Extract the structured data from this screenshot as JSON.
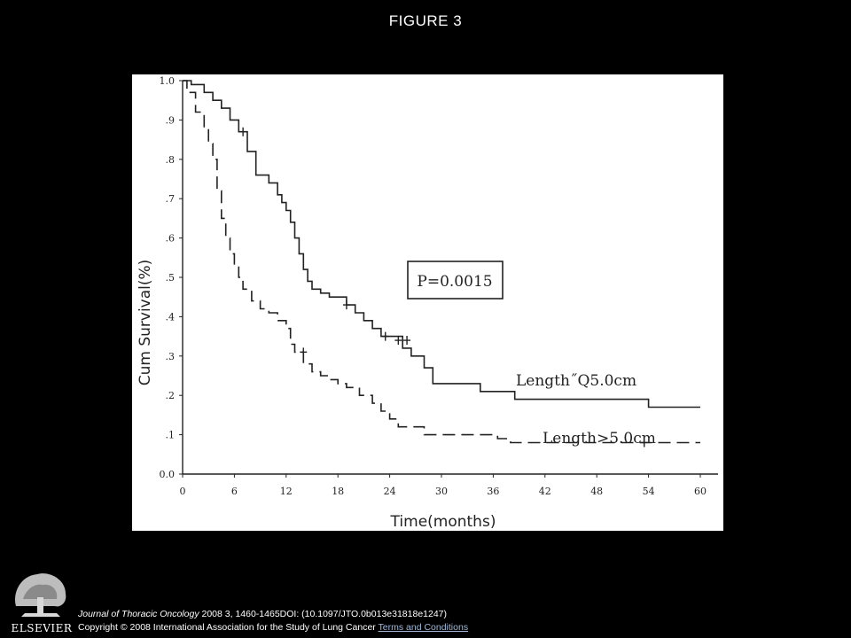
{
  "slide": {
    "title": "FIGURE 3"
  },
  "footer": {
    "journal": "Journal of Thoracic Oncology",
    "citation": " 2008 3, 1460-1465DOI: (10.1097/JTO.0b013e31818e1247)",
    "copyright": "Copyright © 2008 International Association for the Study of Lung Cancer",
    "terms_link": "Terms and Conditions"
  },
  "logo": {
    "text": "ELSEVIER"
  },
  "colors": {
    "background": "#000000",
    "panel": "#ffffff",
    "ink": "#222222",
    "link": "#9fb7d6"
  },
  "chart_data": {
    "type": "line",
    "title": "",
    "xlabel": "Time(months)",
    "ylabel": "Cum Survival(%)",
    "xlim": [
      0,
      60
    ],
    "ylim": [
      0,
      1
    ],
    "x_ticks": [
      0,
      6,
      12,
      18,
      24,
      30,
      36,
      42,
      48,
      54,
      60
    ],
    "x_tick_labels": [
      "0",
      "6",
      "12",
      "18",
      "24",
      "30",
      "36",
      "42",
      "48",
      "54",
      "60"
    ],
    "y_ticks": [
      0,
      0.1,
      0.2,
      0.3,
      0.4,
      0.5,
      0.6,
      0.7,
      0.8,
      0.9,
      1.0
    ],
    "y_tick_labels": [
      "0.0",
      ".1",
      ".2",
      ".3",
      ".4",
      ".5",
      ".6",
      ".7",
      ".8",
      ".9",
      "1.0"
    ],
    "grid": false,
    "annotation": "P=0.0015",
    "series": [
      {
        "name": "Length˝Q5.0cm",
        "style": "solid",
        "x": [
          0,
          1.0,
          1.0,
          2.5,
          2.5,
          3.5,
          3.5,
          4.5,
          4.5,
          5.5,
          5.5,
          6.5,
          6.5,
          7.5,
          7.5,
          8.5,
          8.5,
          10.0,
          10.0,
          11.0,
          11.0,
          11.5,
          11.5,
          12.0,
          12.0,
          12.5,
          12.5,
          13.0,
          13.0,
          13.5,
          13.5,
          14.0,
          14.0,
          14.5,
          14.5,
          15.0,
          15.0,
          16.0,
          16.0,
          17.0,
          17.0,
          19.0,
          19.0,
          20.0,
          20.0,
          21.0,
          21.0,
          22.0,
          22.0,
          23.0,
          23.0,
          25.5,
          25.5,
          26.5,
          26.5,
          28.0,
          28.0,
          29.0,
          29.0,
          34.5,
          34.5,
          38.5,
          38.5,
          54.0,
          54.0,
          60.0
        ],
        "y": [
          1.0,
          1.0,
          0.99,
          0.99,
          0.97,
          0.97,
          0.95,
          0.95,
          0.93,
          0.93,
          0.9,
          0.9,
          0.87,
          0.87,
          0.82,
          0.82,
          0.76,
          0.76,
          0.74,
          0.74,
          0.71,
          0.71,
          0.69,
          0.69,
          0.67,
          0.67,
          0.64,
          0.64,
          0.6,
          0.6,
          0.56,
          0.56,
          0.52,
          0.52,
          0.49,
          0.49,
          0.47,
          0.47,
          0.46,
          0.46,
          0.45,
          0.45,
          0.43,
          0.43,
          0.41,
          0.41,
          0.39,
          0.39,
          0.37,
          0.37,
          0.35,
          0.35,
          0.32,
          0.32,
          0.3,
          0.3,
          0.27,
          0.27,
          0.23,
          0.23,
          0.21,
          0.21,
          0.19,
          0.19,
          0.17,
          0.17
        ],
        "censored": [
          [
            7.0,
            0.87
          ],
          [
            19.0,
            0.43
          ],
          [
            23.5,
            0.35
          ],
          [
            25.0,
            0.34
          ],
          [
            26.0,
            0.34
          ]
        ]
      },
      {
        "name": "Length>5.0cm",
        "style": "dashed",
        "x": [
          0,
          0.5,
          0.5,
          1.5,
          1.5,
          2.5,
          2.5,
          3.0,
          3.0,
          3.5,
          3.5,
          4.0,
          4.0,
          4.5,
          4.5,
          5.0,
          5.0,
          5.5,
          5.5,
          6.0,
          6.0,
          6.5,
          6.5,
          7.0,
          7.0,
          8.0,
          8.0,
          9.0,
          9.0,
          10.0,
          10.0,
          11.0,
          11.0,
          12.0,
          12.0,
          12.5,
          12.5,
          13.0,
          13.0,
          14.0,
          14.0,
          15.0,
          15.0,
          16.0,
          16.0,
          17.0,
          17.0,
          18.0,
          18.0,
          19.0,
          19.0,
          20.5,
          20.5,
          22.0,
          22.0,
          23.0,
          23.0,
          24.0,
          24.0,
          25.0,
          25.0,
          28.0,
          28.0,
          36.5,
          36.5,
          38.0,
          38.0,
          60.0
        ],
        "y": [
          1.0,
          1.0,
          0.97,
          0.97,
          0.92,
          0.92,
          0.88,
          0.88,
          0.84,
          0.84,
          0.8,
          0.8,
          0.72,
          0.72,
          0.65,
          0.65,
          0.6,
          0.6,
          0.56,
          0.56,
          0.53,
          0.53,
          0.5,
          0.5,
          0.47,
          0.47,
          0.44,
          0.44,
          0.42,
          0.42,
          0.41,
          0.41,
          0.39,
          0.39,
          0.37,
          0.37,
          0.33,
          0.33,
          0.31,
          0.31,
          0.28,
          0.28,
          0.26,
          0.26,
          0.25,
          0.25,
          0.24,
          0.24,
          0.23,
          0.23,
          0.22,
          0.22,
          0.2,
          0.2,
          0.18,
          0.18,
          0.16,
          0.16,
          0.14,
          0.14,
          0.12,
          0.12,
          0.1,
          0.1,
          0.09,
          0.09,
          0.08,
          0.08
        ],
        "censored": [
          [
            14.0,
            0.31
          ],
          [
            53.5,
            0.08
          ]
        ]
      }
    ]
  }
}
